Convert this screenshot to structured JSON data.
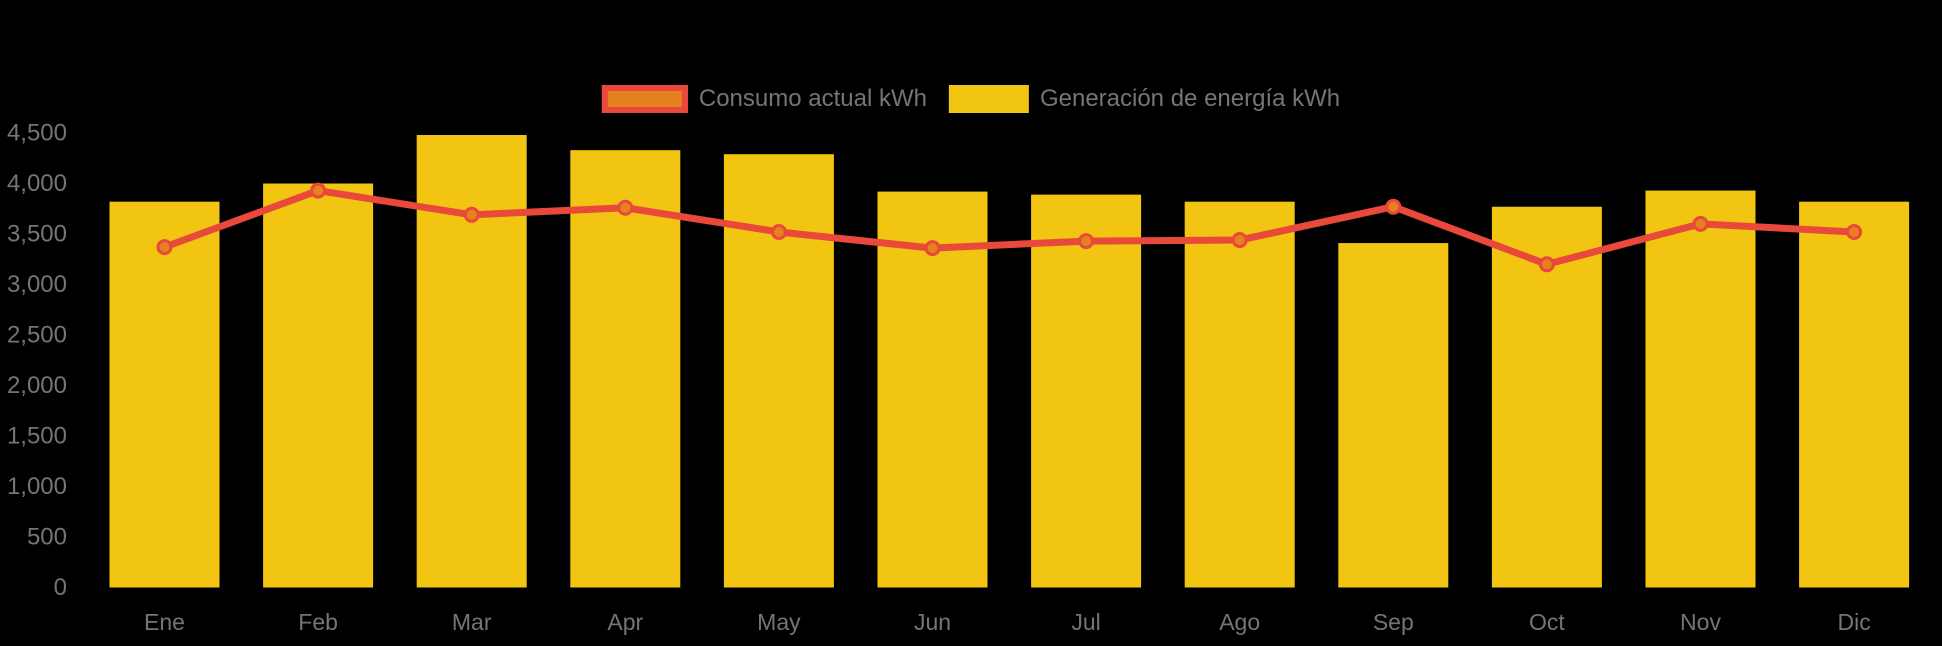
{
  "page": {
    "background": "#000000"
  },
  "legend": {
    "position": "top-center",
    "text_color": "#757575",
    "items": [
      {
        "label": "Consumo actual kWh",
        "series_type": "line",
        "swatch_fill": "#E6821E",
        "swatch_border": "#E8493B"
      },
      {
        "label": "Generación de energía kWh",
        "series_type": "bar",
        "swatch_fill": "#F2C512",
        "swatch_border": "#F2C512"
      }
    ]
  },
  "chart_data": {
    "type": "bar",
    "subtype": "bar-line-combo",
    "title": "",
    "xlabel": "",
    "ylabel": "",
    "categories": [
      "Ene",
      "Feb",
      "Mar",
      "Apr",
      "May",
      "Jun",
      "Jul",
      "Ago",
      "Sep",
      "Oct",
      "Nov",
      "Dic"
    ],
    "series": [
      {
        "name": "Generación de energía kWh",
        "type": "bar",
        "color": "#F2C512",
        "values": [
          3820,
          4000,
          4480,
          4330,
          4290,
          3920,
          3890,
          3820,
          3410,
          3770,
          3930,
          3820
        ]
      },
      {
        "name": "Consumo actual kWh",
        "type": "line",
        "color": "#E8493B",
        "marker_fill": "#E6821E",
        "marker_border": "#E8493B",
        "values": [
          3370,
          3930,
          3690,
          3760,
          3520,
          3360,
          3430,
          3440,
          3770,
          3200,
          3600,
          3520
        ]
      }
    ],
    "ylim": [
      0,
      4500
    ],
    "ytick_step": 500,
    "ytick_labels": [
      "0",
      "500",
      "1,000",
      "1,500",
      "2,000",
      "2,500",
      "3,000",
      "3,500",
      "4,000",
      "4,500"
    ],
    "axis_text_color": "#757575",
    "grid": false,
    "background": "transparent-on-black",
    "legend_position": "top-center"
  }
}
